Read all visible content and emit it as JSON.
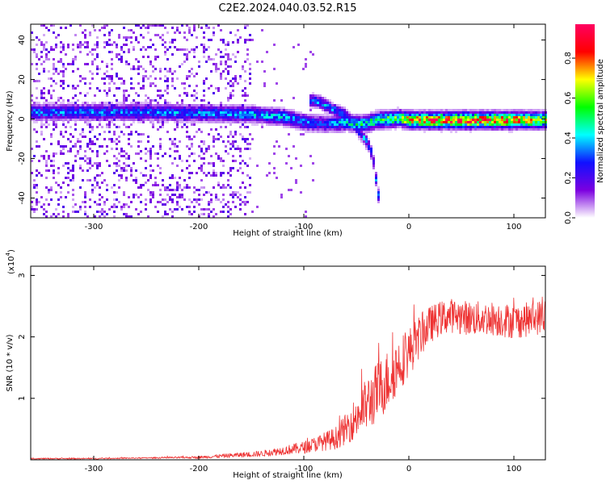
{
  "title": "C2E2.2024.040.03.52.R15",
  "chart_data": [
    {
      "type": "heatmap",
      "xlabel": "Height of straight line (km)",
      "ylabel": "Frequency (Hz)",
      "xlim": [
        -360,
        130
      ],
      "ylim": [
        -50,
        48
      ],
      "xticks": [
        -300,
        -200,
        -100,
        0,
        100
      ],
      "yticks": [
        -40,
        -20,
        0,
        20,
        40
      ],
      "colorbar": {
        "label": "Normalized spectral amplitude",
        "range": [
          0,
          0.97
        ],
        "ticks": [
          0.0,
          0.2,
          0.4,
          0.6,
          0.8
        ],
        "tick_labels": [
          "0.0",
          "0.2",
          "0.4",
          "0.6",
          "0.8"
        ],
        "colormap": [
          "#ffffff",
          "#7b00e0",
          "#1010ff",
          "#00ffff",
          "#00ff00",
          "#ffff00",
          "#ff0000",
          "#ff0060"
        ]
      },
      "ridge": {
        "description_points_x": [
          -360,
          -300,
          -250,
          -200,
          -150,
          -120,
          -100,
          -80,
          -60,
          -45,
          -30,
          -10,
          0,
          50,
          100,
          130
        ],
        "center_freq": [
          4,
          4,
          4,
          3.5,
          3,
          1.5,
          -1,
          -2,
          -1,
          -2,
          0,
          1,
          0,
          0,
          0,
          0
        ],
        "peak_amplitude": [
          0.35,
          0.35,
          0.35,
          0.38,
          0.4,
          0.4,
          0.35,
          0.3,
          0.45,
          0.5,
          0.55,
          0.6,
          0.8,
          0.95,
          0.85,
          0.7
        ]
      },
      "branch": {
        "x": [
          -95,
          -85,
          -75,
          -60,
          -45,
          -38,
          -35,
          -30
        ],
        "freq": [
          10,
          9,
          6,
          2,
          -8,
          -14,
          -20,
          -38
        ]
      },
      "noise_region": {
        "x_from": -360,
        "x_to": -150,
        "amplitude": 0.1
      },
      "grid": false
    },
    {
      "type": "line",
      "xlabel": "Height of straight line (km)",
      "ylabel": "SNR (10 * v/v)",
      "scale_label": "(x10",
      "scale_exponent": "4",
      "xlim": [
        -360,
        130
      ],
      "ylim": [
        0,
        3.15
      ],
      "xticks": [
        -300,
        -200,
        -100,
        0,
        100
      ],
      "yticks": [
        1,
        2,
        3
      ],
      "color": "#ee3333",
      "grid": false,
      "series": [
        {
          "x": [
            -360,
            -300,
            -250,
            -200,
            -180,
            -160,
            -140,
            -120,
            -100,
            -90,
            -80,
            -70,
            -60,
            -50,
            -40,
            -30,
            -20,
            -10,
            0,
            10,
            20,
            30,
            40,
            60,
            80,
            100,
            120,
            130
          ],
          "y": [
            0.02,
            0.02,
            0.03,
            0.04,
            0.06,
            0.08,
            0.1,
            0.15,
            0.2,
            0.25,
            0.3,
            0.35,
            0.5,
            0.7,
            0.9,
            1.1,
            1.3,
            1.55,
            1.75,
            2.0,
            2.2,
            2.3,
            2.35,
            2.3,
            2.3,
            2.25,
            2.3,
            2.35
          ],
          "spread": [
            0.01,
            0.01,
            0.01,
            0.02,
            0.03,
            0.04,
            0.05,
            0.07,
            0.1,
            0.12,
            0.15,
            0.18,
            0.25,
            0.35,
            0.45,
            0.5,
            0.5,
            0.45,
            0.4,
            0.35,
            0.3,
            0.28,
            0.28,
            0.28,
            0.28,
            0.28,
            0.28,
            0.28
          ]
        }
      ]
    }
  ]
}
